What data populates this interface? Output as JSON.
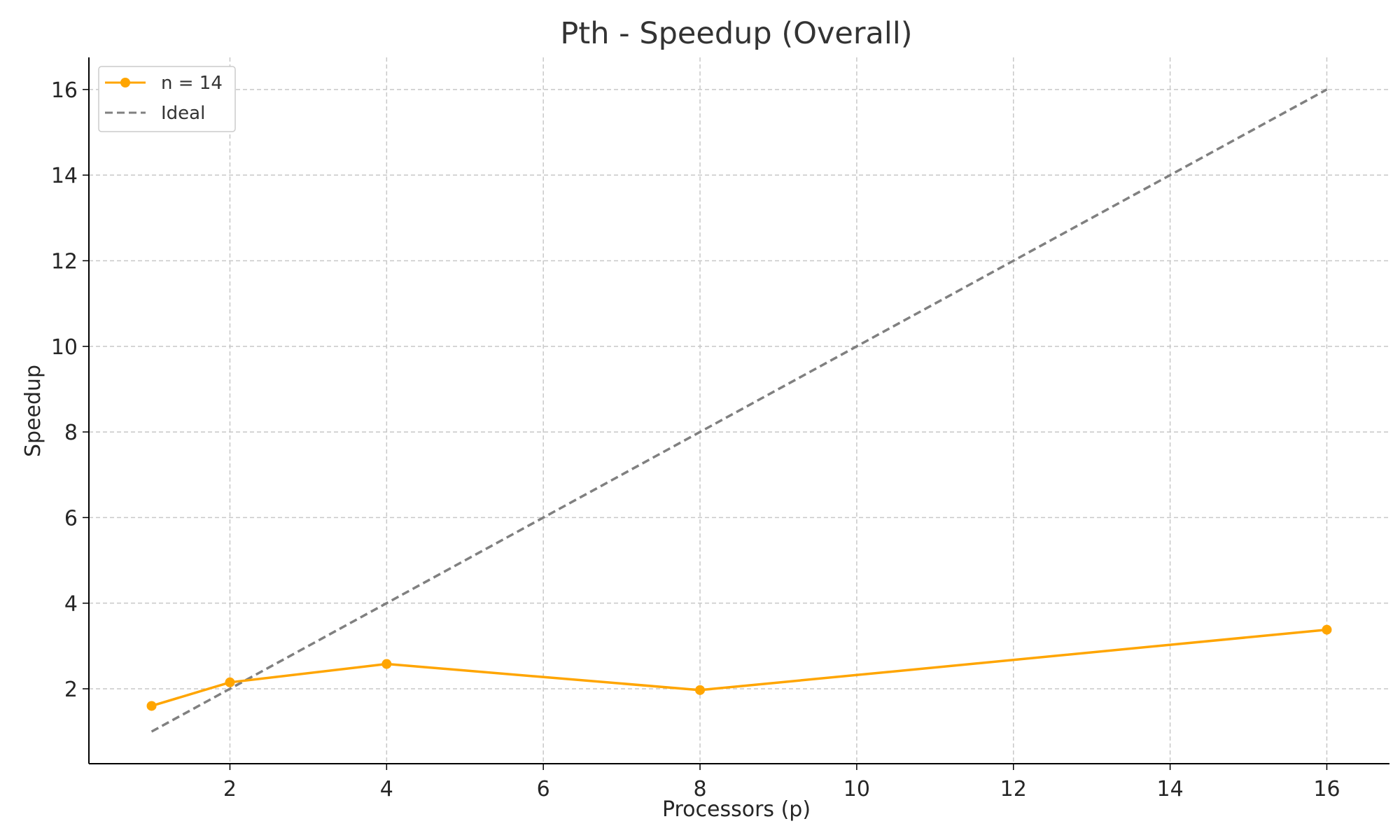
{
  "chart_data": {
    "type": "line",
    "title": "Pth - Speedup (Overall)",
    "xlabel": "Processors (p)",
    "ylabel": "Speedup",
    "xlim": [
      0.2,
      16.8
    ],
    "ylim": [
      0.25,
      16.75
    ],
    "xticks": [
      2,
      4,
      6,
      8,
      10,
      12,
      14,
      16
    ],
    "yticks": [
      2,
      4,
      6,
      8,
      10,
      12,
      14,
      16
    ],
    "grid": true,
    "legend_position": "top-left",
    "series": [
      {
        "name": "n = 14",
        "color": "#FFA500",
        "style": "solid",
        "marker": "circle",
        "x": [
          1,
          2,
          4,
          8,
          16
        ],
        "y": [
          1.6,
          2.15,
          2.58,
          1.97,
          3.38
        ]
      },
      {
        "name": "Ideal",
        "color": "#808080",
        "style": "dashed",
        "marker": "none",
        "x": [
          1,
          2,
          4,
          8,
          16
        ],
        "y": [
          1,
          2,
          4,
          8,
          16
        ]
      }
    ]
  }
}
